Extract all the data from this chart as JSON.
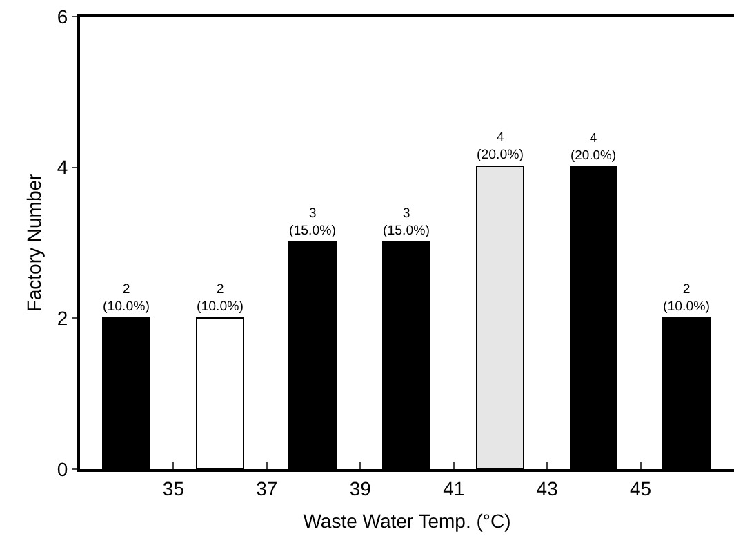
{
  "chart_data": {
    "type": "bar",
    "xlabel": "Waste Water Temp. (°C)",
    "ylabel": "Factory Number",
    "x": [
      34,
      36,
      38,
      40,
      42,
      44,
      46
    ],
    "values": [
      2,
      2,
      3,
      3,
      4,
      4,
      2
    ],
    "colors": [
      "#000000",
      "#ffffff",
      "#000000",
      "#000000",
      "#e6e6e6",
      "#000000",
      "#000000"
    ],
    "value_labels": [
      "2\n(10.0%)",
      "2\n(10.0%)",
      "3\n(15.0%)",
      "3\n(15.0%)",
      "4\n(20.0%)",
      "4\n(20.0%)",
      "2\n(10.0%)"
    ],
    "xlim": [
      33,
      47
    ],
    "xticks": [
      35,
      37,
      39,
      41,
      43,
      45
    ],
    "ylim": [
      0,
      6
    ],
    "yticks": [
      0,
      2,
      4,
      6
    ],
    "grid": false,
    "legend": false
  }
}
